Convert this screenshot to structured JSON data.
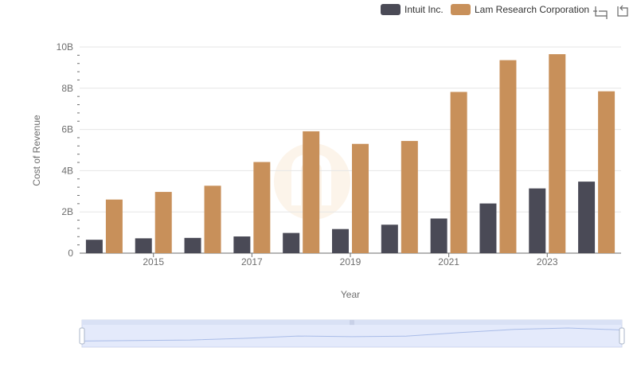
{
  "chart_data": {
    "type": "bar",
    "x": [
      2014,
      2015,
      2016,
      2017,
      2018,
      2019,
      2020,
      2021,
      2022,
      2023,
      2024
    ],
    "x_tick_labels": [
      "2015",
      "2017",
      "2019",
      "2021",
      "2023"
    ],
    "series": [
      {
        "name": "Intuit Inc.",
        "color": "#4a4a56",
        "values": [
          0.65,
          0.72,
          0.74,
          0.81,
          0.98,
          1.17,
          1.38,
          1.68,
          2.41,
          3.14,
          3.47
        ]
      },
      {
        "name": "Lam Research Corporation",
        "color": "#c8905a",
        "values": [
          2.6,
          2.97,
          3.27,
          4.42,
          5.91,
          5.3,
          5.44,
          7.82,
          9.36,
          9.65,
          7.85
        ]
      }
    ],
    "y_ticks": [
      {
        "value": 0,
        "label": "0"
      },
      {
        "value": 2,
        "label": "2B"
      },
      {
        "value": 4,
        "label": "4B"
      },
      {
        "value": 6,
        "label": "6B"
      },
      {
        "value": 8,
        "label": "8B"
      },
      {
        "value": 10,
        "label": "10B"
      }
    ],
    "ylim": [
      0,
      10
    ],
    "ylabel": "Cost of Revenue",
    "xlabel": "Year",
    "grid": true,
    "legend_position": "top-right"
  },
  "toolbar": {
    "zoom_icon": "crop-zoom-icon",
    "reset_icon": "undo-icon"
  },
  "data_zoom": {
    "range_start": 0,
    "range_end": 1
  }
}
